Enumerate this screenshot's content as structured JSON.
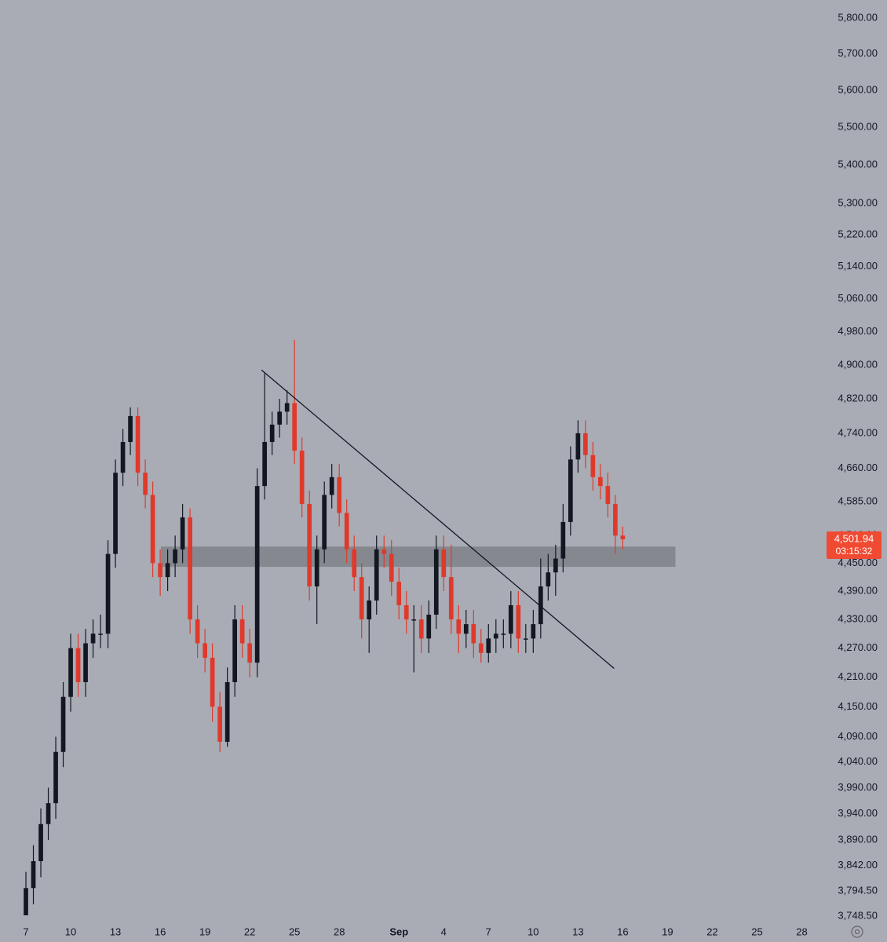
{
  "chart_data": {
    "type": "candlestick",
    "log_scale": true,
    "up_color": "#131722",
    "down_color": "#e0392b",
    "x": [
      0,
      0.5,
      1,
      1.5,
      2,
      2.5,
      3,
      3.5,
      4,
      4.5,
      5,
      5.5,
      6,
      6.5,
      7,
      7.5,
      8,
      8.5,
      9,
      9.5,
      10,
      10.5,
      11,
      11.5,
      12,
      12.5,
      13,
      13.5,
      14,
      14.5,
      15,
      15.5,
      16,
      16.5,
      17,
      17.5,
      18,
      18.5,
      19,
      19.5,
      20,
      20.5,
      21,
      21.5,
      22,
      22.5,
      23,
      23.5,
      24,
      24.5,
      25,
      25.5,
      26,
      26.5,
      27,
      27.5,
      28,
      28.5,
      29,
      29.5,
      30,
      30.5,
      31,
      31.5,
      32,
      32.5,
      33,
      33.5,
      34,
      34.5,
      35,
      35.5,
      36,
      36.5,
      37,
      37.5,
      38,
      38.5,
      39,
      39.5,
      40
    ],
    "open": [
      3750,
      3800,
      3850,
      3920,
      3960,
      4060,
      4170,
      4270,
      4200,
      4280,
      4300,
      4300,
      4470,
      4650,
      4720,
      4780,
      4650,
      4600,
      4450,
      4420,
      4450,
      4480,
      4550,
      4330,
      4280,
      4250,
      4150,
      4080,
      4200,
      4330,
      4280,
      4240,
      4620,
      4720,
      4760,
      4790,
      4810,
      4700,
      4580,
      4400,
      4480,
      4600,
      4640,
      4560,
      4480,
      4420,
      4330,
      4370,
      4480,
      4470,
      4410,
      4360,
      4330,
      4330,
      4290,
      4340,
      4480,
      4420,
      4330,
      4300,
      4320,
      4280,
      4260,
      4290,
      4300,
      4300,
      4360,
      4290,
      4290,
      4320,
      4400,
      4430,
      4460,
      4540,
      4680,
      4740,
      4690,
      4640,
      4620,
      4580,
      4510
    ],
    "high": [
      3830,
      3880,
      3950,
      3990,
      4090,
      4200,
      4300,
      4300,
      4310,
      4330,
      4340,
      4500,
      4680,
      4750,
      4800,
      4800,
      4680,
      4630,
      4480,
      4480,
      4510,
      4580,
      4570,
      4360,
      4310,
      4280,
      4180,
      4230,
      4360,
      4360,
      4310,
      4660,
      4880,
      4790,
      4820,
      4840,
      4960,
      4730,
      4610,
      4510,
      4630,
      4670,
      4670,
      4590,
      4510,
      4450,
      4400,
      4510,
      4510,
      4500,
      4440,
      4390,
      4360,
      4360,
      4370,
      4510,
      4510,
      4490,
      4360,
      4350,
      4350,
      4310,
      4320,
      4330,
      4330,
      4390,
      4390,
      4320,
      4350,
      4460,
      4470,
      4490,
      4580,
      4710,
      4770,
      4770,
      4720,
      4670,
      4650,
      4600,
      4530
    ],
    "low": [
      3750,
      3770,
      3820,
      3890,
      3930,
      4030,
      4140,
      4170,
      4170,
      4250,
      4270,
      4270,
      4440,
      4620,
      4690,
      4620,
      4570,
      4420,
      4380,
      4390,
      4420,
      4450,
      4300,
      4250,
      4220,
      4120,
      4060,
      4070,
      4170,
      4250,
      4210,
      4210,
      4590,
      4690,
      4730,
      4760,
      4670,
      4550,
      4370,
      4320,
      4450,
      4570,
      4530,
      4450,
      4390,
      4290,
      4260,
      4340,
      4440,
      4380,
      4330,
      4300,
      4220,
      4260,
      4260,
      4310,
      4390,
      4300,
      4260,
      4270,
      4250,
      4240,
      4240,
      4260,
      4270,
      4270,
      4260,
      4260,
      4260,
      4290,
      4370,
      4380,
      4430,
      4510,
      4650,
      4660,
      4610,
      4590,
      4550,
      4470,
      4480
    ],
    "close": [
      3800,
      3850,
      3920,
      3960,
      4060,
      4170,
      4270,
      4200,
      4280,
      4300,
      4300,
      4470,
      4650,
      4720,
      4780,
      4650,
      4600,
      4450,
      4420,
      4450,
      4480,
      4550,
      4330,
      4280,
      4250,
      4150,
      4080,
      4200,
      4330,
      4280,
      4240,
      4620,
      4720,
      4760,
      4790,
      4810,
      4700,
      4580,
      4400,
      4480,
      4600,
      4640,
      4560,
      4480,
      4420,
      4330,
      4370,
      4480,
      4470,
      4410,
      4360,
      4330,
      4330,
      4290,
      4340,
      4480,
      4420,
      4330,
      4300,
      4320,
      4280,
      4260,
      4290,
      4300,
      4300,
      4360,
      4290,
      4290,
      4320,
      4400,
      4430,
      4460,
      4540,
      4680,
      4740,
      4690,
      4640,
      4620,
      4580,
      4510,
      4501.94
    ],
    "xlim": [
      -1.737,
      53.5
    ],
    "xticks": [
      {
        "value": 0,
        "label": "7"
      },
      {
        "value": 3,
        "label": "10"
      },
      {
        "value": 6,
        "label": "13"
      },
      {
        "value": 9,
        "label": "16"
      },
      {
        "value": 12,
        "label": "19"
      },
      {
        "value": 15,
        "label": "22"
      },
      {
        "value": 18,
        "label": "25"
      },
      {
        "value": 21,
        "label": "28"
      },
      {
        "value": 25,
        "label": "Sep"
      },
      {
        "value": 28,
        "label": "4"
      },
      {
        "value": 31,
        "label": "7"
      },
      {
        "value": 34,
        "label": "10"
      },
      {
        "value": 37,
        "label": "13"
      },
      {
        "value": 40,
        "label": "16"
      },
      {
        "value": 43,
        "label": "19"
      },
      {
        "value": 46,
        "label": "22"
      },
      {
        "value": 49,
        "label": "25"
      },
      {
        "value": 52,
        "label": "28"
      }
    ],
    "ylim": [
      3730,
      5851
    ],
    "yticks": [
      {
        "value": 5800,
        "label": "5,800.00"
      },
      {
        "value": 5700,
        "label": "5,700.00"
      },
      {
        "value": 5600,
        "label": "5,600.00"
      },
      {
        "value": 5500,
        "label": "5,500.00"
      },
      {
        "value": 5400,
        "label": "5,400.00"
      },
      {
        "value": 5300,
        "label": "5,300.00"
      },
      {
        "value": 5220,
        "label": "5,220.00"
      },
      {
        "value": 5140,
        "label": "5,140.00"
      },
      {
        "value": 5060,
        "label": "5,060.00"
      },
      {
        "value": 4980,
        "label": "4,980.00"
      },
      {
        "value": 4900,
        "label": "4,900.00"
      },
      {
        "value": 4820,
        "label": "4,820.00"
      },
      {
        "value": 4740,
        "label": "4,740.00"
      },
      {
        "value": 4660,
        "label": "4,660.00"
      },
      {
        "value": 4585,
        "label": "4,585.00"
      },
      {
        "value": 4510,
        "label": "4,510.00"
      },
      {
        "value": 4450,
        "label": "4,450.00"
      },
      {
        "value": 4390,
        "label": "4,390.00"
      },
      {
        "value": 4330,
        "label": "4,330.00"
      },
      {
        "value": 4270,
        "label": "4,270.00"
      },
      {
        "value": 4210,
        "label": "4,210.00"
      },
      {
        "value": 4150,
        "label": "4,150.00"
      },
      {
        "value": 4090,
        "label": "4,090.00"
      },
      {
        "value": 4040,
        "label": "4,040.00"
      },
      {
        "value": 3990,
        "label": "3,990.00"
      },
      {
        "value": 3940,
        "label": "3,940.00"
      },
      {
        "value": 3890,
        "label": "3,890.00"
      },
      {
        "value": 3842,
        "label": "3,842.00"
      },
      {
        "value": 3794.5,
        "label": "3,794.50"
      },
      {
        "value": 3748.5,
        "label": "3,748.50"
      }
    ],
    "last_price": {
      "value": 4501.94,
      "label": "4,501.94"
    },
    "countdown": "03:15:32",
    "trendline": {
      "x": [
        15.79,
        39.42
      ],
      "y": [
        4888,
        4228
      ]
    },
    "zone": {
      "x": [
        9.05,
        43.53
      ],
      "y": [
        4442,
        4486
      ]
    }
  }
}
